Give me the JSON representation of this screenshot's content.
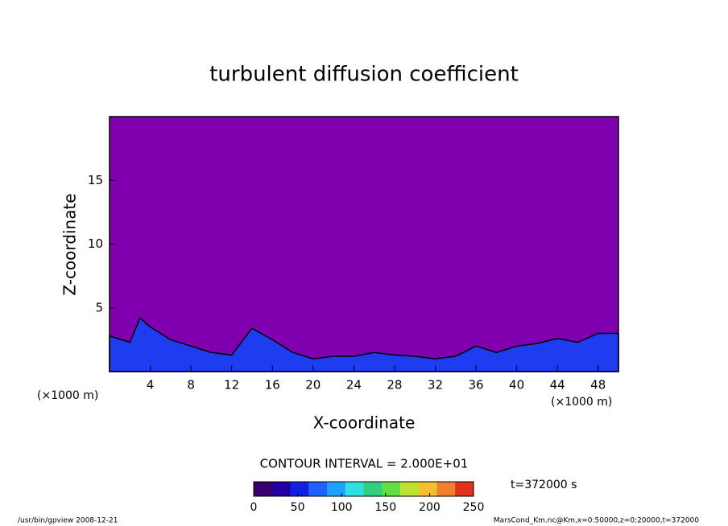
{
  "chart_data": {
    "type": "contour",
    "title": "turbulent diffusion coefficient",
    "x_label": "X-coordinate",
    "y_label": "Z-coordinate",
    "x_unit": "(×1000 m)",
    "y_unit": "(×1000 m)",
    "x": [
      0,
      2,
      3,
      4,
      6,
      8,
      10,
      12,
      14,
      16,
      18,
      20,
      22,
      24,
      26,
      28,
      30,
      32,
      34,
      36,
      38,
      40,
      42,
      44,
      46,
      48,
      50
    ],
    "values": [
      2.8,
      2.3,
      4.2,
      3.5,
      2.5,
      2.0,
      1.5,
      1.3,
      3.4,
      2.5,
      1.5,
      1.0,
      1.2,
      1.2,
      1.5,
      1.3,
      1.2,
      1.0,
      1.2,
      2.0,
      1.5,
      2.0,
      2.2,
      2.6,
      2.3,
      3.0,
      3.0
    ],
    "color": "#1e3cf0",
    "background_color": "#8000b0",
    "xlim": [
      0,
      50
    ],
    "xticks": [
      4,
      8,
      12,
      16,
      20,
      24,
      28,
      32,
      36,
      40,
      44,
      48
    ],
    "ylim": [
      0,
      20
    ],
    "yticks": [
      5,
      10,
      15
    ],
    "clim": [
      0,
      250
    ],
    "cticks": [
      0,
      50,
      100,
      150,
      200,
      250
    ],
    "colormap": [
      "#3a0070",
      "#2000a0",
      "#1020e0",
      "#2060ff",
      "#20a0ff",
      "#30e0e0",
      "#30d080",
      "#60e040",
      "#c0e030",
      "#f0c030",
      "#f08030",
      "#e03020"
    ],
    "contour_interval_label": "CONTOUR INTERVAL = 2.000E+01",
    "time_label": "t=372000 s",
    "footer_left": "/usr/bin/gpview   2008-12-21",
    "footer_right": "MarsCond_Km.nc@Km,x=0:50000,z=0:20000,t=372000"
  }
}
